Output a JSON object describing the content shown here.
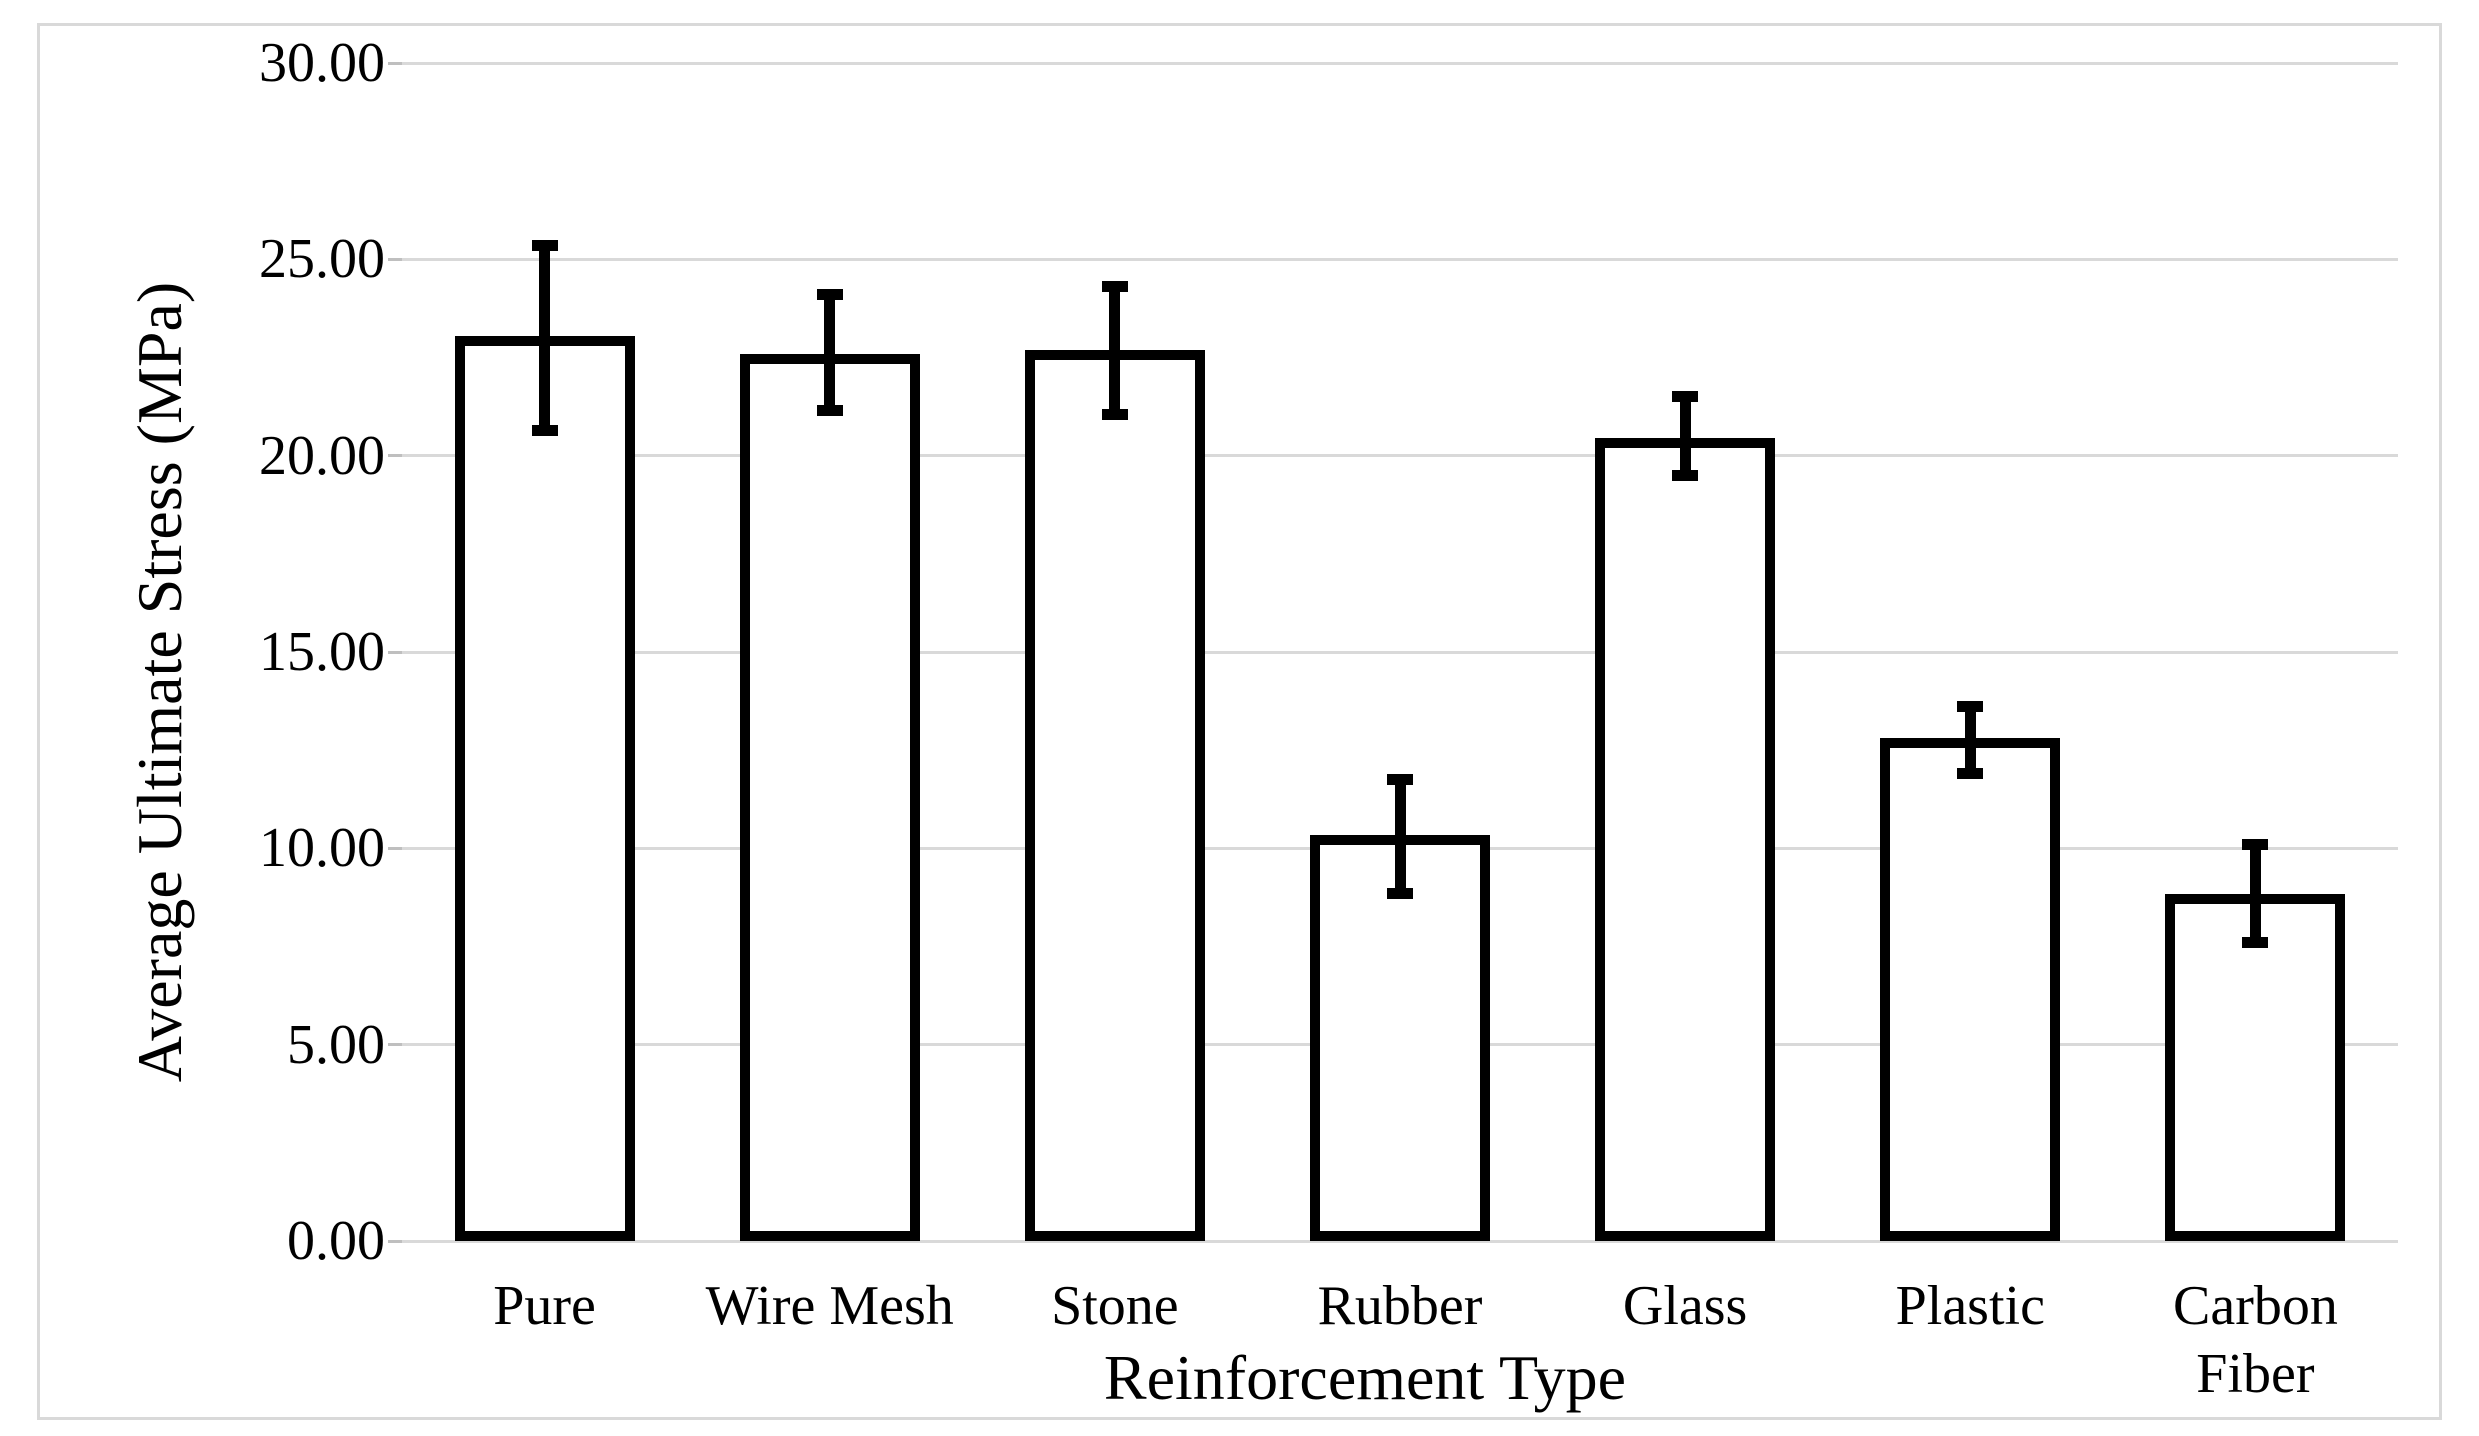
{
  "figure": {
    "background_color": "#ffffff",
    "border_color": "#d9d9d9",
    "text_color": "#000000"
  },
  "chart_data": {
    "type": "bar",
    "title": "",
    "xlabel": "Reinforcement Type",
    "ylabel": "Average Ultimate Stress (MPa)",
    "categories": [
      "Pure",
      "Wire Mesh",
      "Stone",
      "Rubber",
      "Glass",
      "Plastic",
      "Carbon Fiber"
    ],
    "values": [
      23.05,
      22.6,
      22.7,
      10.35,
      20.45,
      12.8,
      8.85
    ],
    "error_high": [
      25.35,
      24.1,
      24.3,
      11.75,
      21.5,
      13.6,
      10.1
    ],
    "error_low": [
      20.65,
      21.15,
      21.05,
      8.85,
      19.5,
      11.9,
      7.6
    ],
    "ylim": [
      0,
      30
    ],
    "ytick_step": 5,
    "ytick_labels": [
      "0.00",
      "5.00",
      "10.00",
      "15.00",
      "20.00",
      "25.00",
      "30.00"
    ],
    "grid": "horizontal",
    "legend": "none",
    "bar_fill": "#ffffff",
    "bar_stroke": "#000000",
    "error_bar_color": "#000000",
    "gridline_color": "#d9d9d9"
  }
}
